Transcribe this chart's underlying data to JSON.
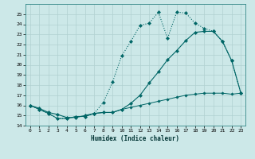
{
  "xlabel": "Humidex (Indice chaleur)",
  "bg_color": "#cce8e8",
  "grid_color": "#b0d0d0",
  "line_color": "#006666",
  "xlim": [
    -0.5,
    23.5
  ],
  "ylim": [
    14,
    26
  ],
  "yticks": [
    14,
    15,
    16,
    17,
    18,
    19,
    20,
    21,
    22,
    23,
    24,
    25
  ],
  "xticks": [
    0,
    1,
    2,
    3,
    4,
    5,
    6,
    7,
    8,
    9,
    10,
    11,
    12,
    13,
    14,
    15,
    16,
    17,
    18,
    19,
    20,
    21,
    22,
    23
  ],
  "line1_x": [
    0,
    1,
    2,
    3,
    4,
    5,
    6,
    7,
    8,
    9,
    10,
    11,
    12,
    13,
    14,
    15,
    16,
    17,
    18,
    19,
    20,
    21,
    22,
    23
  ],
  "line1_y": [
    16.0,
    15.6,
    15.2,
    14.7,
    14.7,
    14.9,
    14.9,
    15.2,
    16.3,
    18.3,
    20.9,
    22.3,
    23.9,
    24.1,
    25.2,
    22.6,
    25.2,
    25.1,
    24.1,
    23.6,
    23.3,
    22.3,
    20.4,
    17.2
  ],
  "line2_x": [
    0,
    1,
    2,
    3,
    4,
    5,
    6,
    7,
    8,
    9,
    10,
    11,
    12,
    13,
    14,
    15,
    16,
    17,
    18,
    19,
    20,
    21,
    22,
    23
  ],
  "line2_y": [
    16.0,
    15.7,
    15.3,
    15.1,
    14.8,
    14.8,
    15.0,
    15.2,
    15.3,
    15.3,
    15.6,
    16.2,
    17.0,
    18.2,
    19.3,
    20.5,
    21.4,
    22.4,
    23.2,
    23.3,
    23.3,
    22.3,
    20.4,
    17.2
  ],
  "line3_x": [
    0,
    1,
    2,
    3,
    4,
    5,
    6,
    7,
    8,
    9,
    10,
    11,
    12,
    13,
    14,
    15,
    16,
    17,
    18,
    19,
    20,
    21,
    22,
    23
  ],
  "line3_y": [
    16.0,
    15.6,
    15.2,
    14.7,
    14.7,
    14.9,
    14.9,
    15.2,
    15.3,
    15.3,
    15.6,
    15.8,
    16.0,
    16.2,
    16.4,
    16.6,
    16.8,
    17.0,
    17.1,
    17.2,
    17.2,
    17.2,
    17.1,
    17.2
  ]
}
